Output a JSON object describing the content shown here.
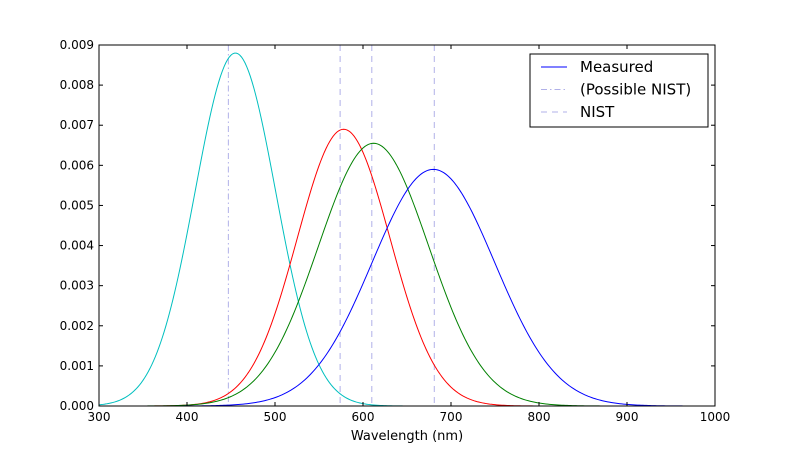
{
  "chart_data": {
    "type": "line",
    "title": "",
    "xlabel": "Wavelength (nm)",
    "ylabel": "",
    "xlim": [
      300,
      1000
    ],
    "ylim": [
      0,
      0.009
    ],
    "x_ticks": [
      300,
      400,
      500,
      600,
      700,
      800,
      900,
      1000
    ],
    "x_tick_labels": [
      "300",
      "400",
      "500",
      "600",
      "700",
      "800",
      "900",
      "1000"
    ],
    "y_ticks": [
      0,
      0.001,
      0.002,
      0.003,
      0.004,
      0.005,
      0.006,
      0.007,
      0.008,
      0.009
    ],
    "y_tick_labels": [
      "0.000",
      "0.001",
      "0.002",
      "0.003",
      "0.004",
      "0.005",
      "0.006",
      "0.007",
      "0.008",
      "0.009"
    ],
    "grid": false,
    "legend_position": "top-right",
    "legend": [
      {
        "label": "Measured",
        "style": "solid",
        "color": "#0000ff"
      },
      {
        "label": "(Possible NIST)",
        "style": "dashdot",
        "color": "#b0b0e8"
      },
      {
        "label": "NIST",
        "style": "dashed",
        "color": "#b0b0e8"
      }
    ],
    "series": [
      {
        "color": "#00bfbf",
        "peak_x": 455,
        "peak_y": 0.0088,
        "fwhm": 108
      },
      {
        "color": "#ff0000",
        "peak_x": 578,
        "peak_y": 0.0069,
        "fwhm": 124
      },
      {
        "color": "#008000",
        "peak_x": 612,
        "peak_y": 0.00655,
        "fwhm": 148
      },
      {
        "color": "#0000ff",
        "peak_x": 680,
        "peak_y": 0.0059,
        "fwhm": 164
      }
    ],
    "reference_lines": [
      {
        "x": 447,
        "style": "dashdot"
      },
      {
        "x": 574,
        "style": "dashed"
      },
      {
        "x": 610,
        "style": "dashed"
      },
      {
        "x": 681,
        "style": "dashed"
      }
    ]
  }
}
